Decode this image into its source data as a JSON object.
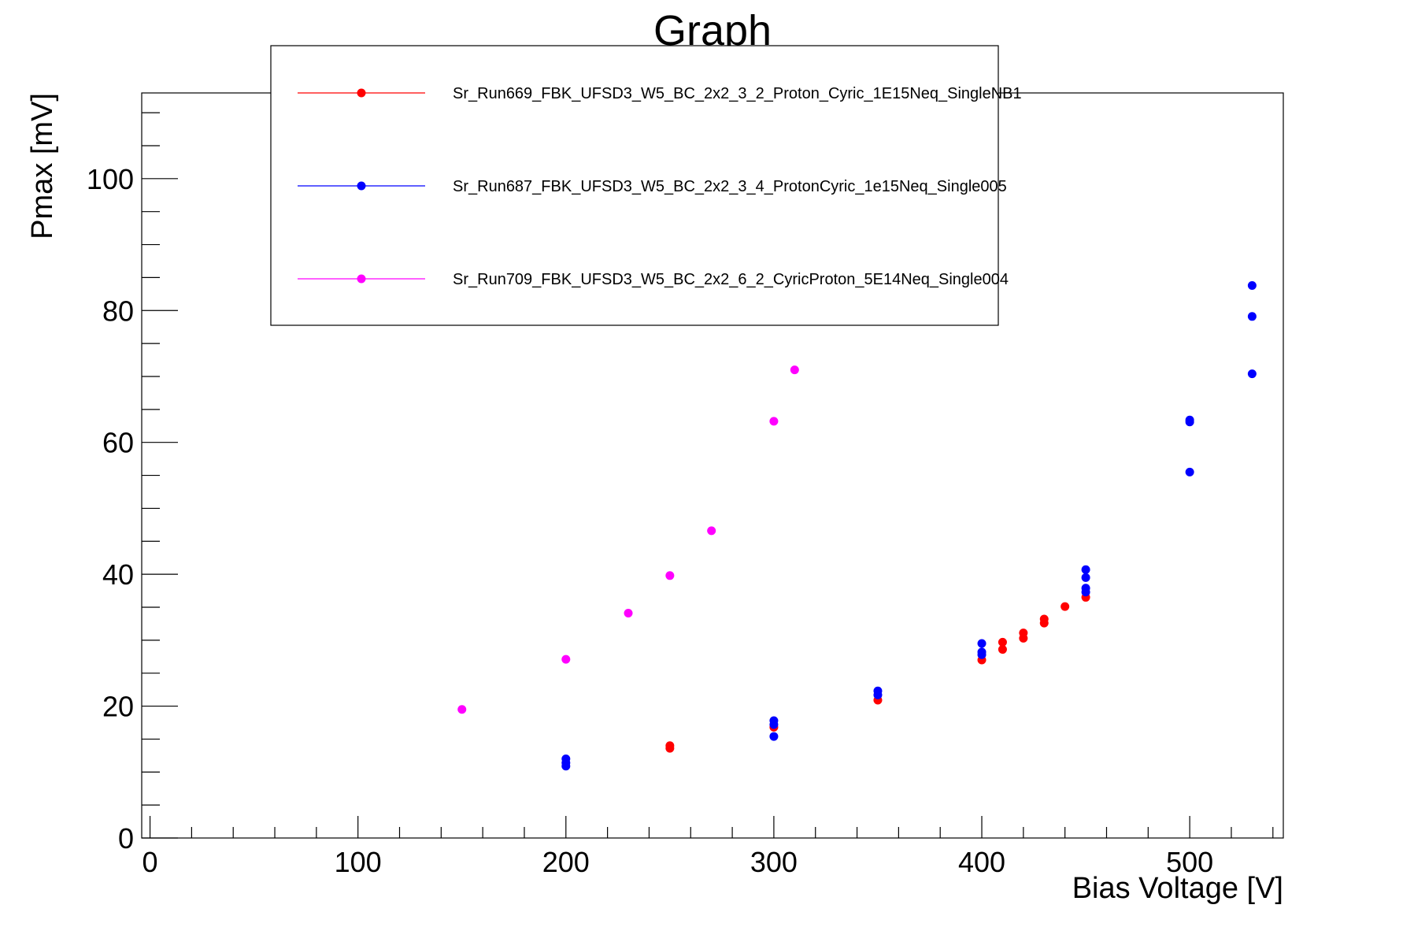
{
  "chart_data": {
    "type": "scatter",
    "title": "Graph",
    "xlabel": "Bias Voltage [V]",
    "ylabel": "Pmax [mV]",
    "xlim": [
      -4,
      545
    ],
    "ylim": [
      0,
      113
    ],
    "x_ticks": [
      0,
      100,
      200,
      300,
      400,
      500
    ],
    "y_ticks": [
      0,
      20,
      40,
      60,
      80,
      100
    ],
    "grid": false,
    "legend_position": "top",
    "series": [
      {
        "name": "Sr_Run669_FBK_UFSD3_W5_BC_2x2_3_2_Proton_Cyric_1E15Neq_SingleNB1",
        "color": "#ff0000",
        "points": [
          [
            250,
            14.0
          ],
          [
            250,
            13.6
          ],
          [
            300,
            16.8
          ],
          [
            350,
            20.9
          ],
          [
            400,
            27.0
          ],
          [
            410,
            29.7
          ],
          [
            410,
            28.6
          ],
          [
            420,
            31.1
          ],
          [
            420,
            30.3
          ],
          [
            430,
            33.2
          ],
          [
            430,
            32.6
          ],
          [
            440,
            35.1
          ],
          [
            450,
            36.5
          ]
        ]
      },
      {
        "name": "Sr_Run687_FBK_UFSD3_W5_BC_2x2_3_4_ProtonCyric_1e15Neq_Single005",
        "color": "#0000ff",
        "points": [
          [
            200,
            12.0
          ],
          [
            200,
            11.4
          ],
          [
            200,
            10.9
          ],
          [
            300,
            17.8
          ],
          [
            300,
            17.2
          ],
          [
            300,
            15.4
          ],
          [
            350,
            22.3
          ],
          [
            350,
            21.7
          ],
          [
            400,
            29.5
          ],
          [
            400,
            28.2
          ],
          [
            400,
            27.8
          ],
          [
            450,
            40.7
          ],
          [
            450,
            39.5
          ],
          [
            450,
            37.9
          ],
          [
            450,
            37.3
          ],
          [
            500,
            63.4
          ],
          [
            500,
            63.1
          ],
          [
            500,
            55.5
          ],
          [
            530,
            83.8
          ],
          [
            530,
            79.1
          ],
          [
            530,
            70.4
          ]
        ]
      },
      {
        "name": "Sr_Run709_FBK_UFSD3_W5_BC_2x2_6_2_CyricProton_5E14Neq_Single004",
        "color": "#ff00ff",
        "points": [
          [
            150,
            19.5
          ],
          [
            200,
            27.1
          ],
          [
            230,
            34.1
          ],
          [
            250,
            39.8
          ],
          [
            270,
            46.6
          ],
          [
            300,
            63.2
          ],
          [
            310,
            71.0
          ]
        ]
      }
    ]
  }
}
